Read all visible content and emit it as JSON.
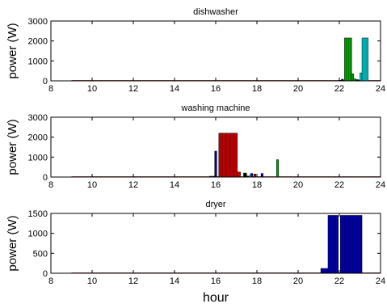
{
  "xlabel": "hour",
  "chart_data": [
    {
      "type": "bar",
      "title": "dishwasher",
      "ylabel": "power (W)",
      "xlim": [
        8,
        24
      ],
      "ylim": [
        0,
        3000
      ],
      "xticks": [
        8,
        10,
        12,
        14,
        16,
        18,
        20,
        22,
        24
      ],
      "yticks": [
        0,
        1000,
        2000,
        3000
      ],
      "series": [
        {
          "color": "#000000",
          "bars": [
            [
              22.1,
              22.2,
              80
            ],
            [
              22.75,
              22.95,
              60
            ]
          ]
        },
        {
          "color": "#00a000",
          "bars": [
            [
              22.25,
              22.6,
              2150
            ],
            [
              22.6,
              22.7,
              350
            ],
            [
              22.7,
              22.8,
              100
            ]
          ]
        },
        {
          "color": "#00bfbf",
          "bars": [
            [
              22.0,
              22.1,
              30
            ],
            [
              23.0,
              23.1,
              400
            ],
            [
              23.1,
              23.4,
              2150
            ]
          ]
        }
      ]
    },
    {
      "type": "bar",
      "title": "washing machine",
      "ylabel": "power (W)",
      "xlim": [
        8,
        24
      ],
      "ylim": [
        0,
        3000
      ],
      "xticks": [
        8,
        10,
        12,
        14,
        16,
        18,
        20,
        22,
        24
      ],
      "yticks": [
        0,
        1000,
        2000,
        3000
      ],
      "series": [
        {
          "color": "#0000b0",
          "bars": [
            [
              15.7,
              15.95,
              40
            ],
            [
              15.95,
              16.05,
              1300
            ],
            [
              17.7,
              17.8,
              180
            ],
            [
              18.2,
              18.3,
              180
            ]
          ]
        },
        {
          "color": "#c00000",
          "bars": [
            [
              16.15,
              17.05,
              2200
            ],
            [
              17.05,
              17.2,
              250
            ],
            [
              17.85,
              17.95,
              150
            ]
          ]
        },
        {
          "color": "#000000",
          "bars": [
            [
              17.35,
              17.5,
              200
            ],
            [
              17.5,
              17.6,
              50
            ]
          ]
        },
        {
          "color": "#00a000",
          "bars": [
            [
              18.95,
              19.05,
              870
            ]
          ]
        },
        {
          "color": "#00bfbf",
          "bars": [
            [
              17.65,
              17.72,
              120
            ]
          ]
        }
      ]
    },
    {
      "type": "bar",
      "title": "dryer",
      "ylabel": "power (W)",
      "xlim": [
        8,
        24
      ],
      "ylim": [
        0,
        1500
      ],
      "xticks": [
        8,
        10,
        12,
        14,
        16,
        18,
        20,
        22,
        24
      ],
      "yticks": [
        0,
        500,
        1000,
        1500
      ],
      "series": [
        {
          "color": "#0000b0",
          "bars": [
            [
              21.1,
              21.45,
              120
            ],
            [
              21.45,
              21.8,
              1450
            ],
            [
              21.8,
              21.95,
              1450
            ],
            [
              22.05,
              23.1,
              1450
            ]
          ]
        }
      ]
    }
  ]
}
